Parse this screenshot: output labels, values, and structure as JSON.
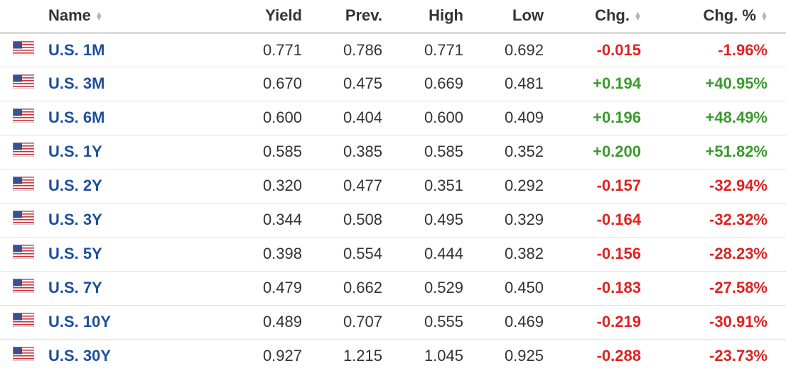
{
  "headers": {
    "name": "Name",
    "yield": "Yield",
    "prev": "Prev.",
    "high": "High",
    "low": "Low",
    "chg": "Chg.",
    "chg_pct": "Chg. %"
  },
  "icons": {
    "flag": "us-flag-icon",
    "sort": "sort-icon"
  },
  "colors": {
    "positive": "#3a9a2e",
    "negative": "#e02121",
    "link": "#1d4f9e"
  },
  "rows": [
    {
      "name": "U.S. 1M",
      "yield": "0.771",
      "prev": "0.786",
      "high": "0.771",
      "low": "0.692",
      "chg": "-0.015",
      "chg_pct": "-1.96%",
      "dir": "neg"
    },
    {
      "name": "U.S. 3M",
      "yield": "0.670",
      "prev": "0.475",
      "high": "0.669",
      "low": "0.481",
      "chg": "+0.194",
      "chg_pct": "+40.95%",
      "dir": "pos"
    },
    {
      "name": "U.S. 6M",
      "yield": "0.600",
      "prev": "0.404",
      "high": "0.600",
      "low": "0.409",
      "chg": "+0.196",
      "chg_pct": "+48.49%",
      "dir": "pos"
    },
    {
      "name": "U.S. 1Y",
      "yield": "0.585",
      "prev": "0.385",
      "high": "0.585",
      "low": "0.352",
      "chg": "+0.200",
      "chg_pct": "+51.82%",
      "dir": "pos"
    },
    {
      "name": "U.S. 2Y",
      "yield": "0.320",
      "prev": "0.477",
      "high": "0.351",
      "low": "0.292",
      "chg": "-0.157",
      "chg_pct": "-32.94%",
      "dir": "neg"
    },
    {
      "name": "U.S. 3Y",
      "yield": "0.344",
      "prev": "0.508",
      "high": "0.495",
      "low": "0.329",
      "chg": "-0.164",
      "chg_pct": "-32.32%",
      "dir": "neg"
    },
    {
      "name": "U.S. 5Y",
      "yield": "0.398",
      "prev": "0.554",
      "high": "0.444",
      "low": "0.382",
      "chg": "-0.156",
      "chg_pct": "-28.23%",
      "dir": "neg"
    },
    {
      "name": "U.S. 7Y",
      "yield": "0.479",
      "prev": "0.662",
      "high": "0.529",
      "low": "0.450",
      "chg": "-0.183",
      "chg_pct": "-27.58%",
      "dir": "neg"
    },
    {
      "name": "U.S. 10Y",
      "yield": "0.489",
      "prev": "0.707",
      "high": "0.555",
      "low": "0.469",
      "chg": "-0.219",
      "chg_pct": "-30.91%",
      "dir": "neg"
    },
    {
      "name": "U.S. 30Y",
      "yield": "0.927",
      "prev": "1.215",
      "high": "1.045",
      "low": "0.925",
      "chg": "-0.288",
      "chg_pct": "-23.73%",
      "dir": "neg"
    }
  ]
}
